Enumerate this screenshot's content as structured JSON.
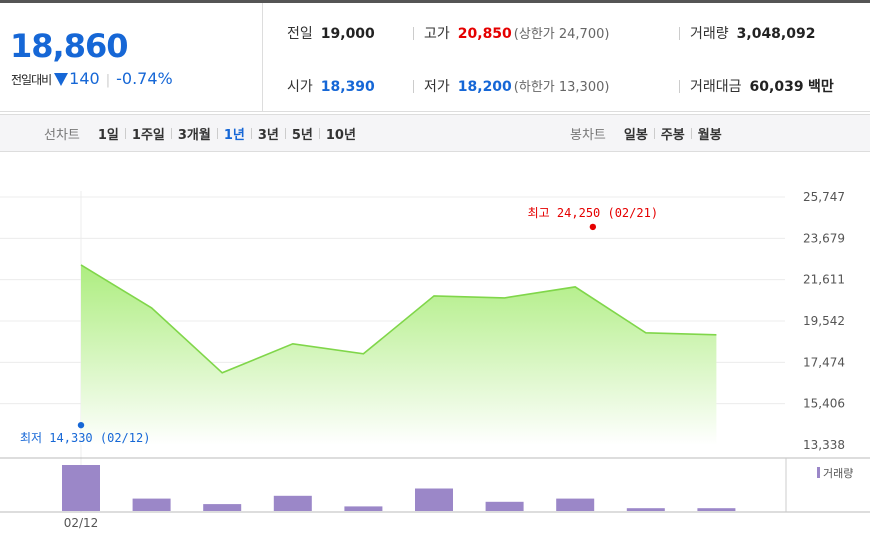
{
  "summary": {
    "current_price": "18,860",
    "change_label": "전일대비",
    "change_value": "140",
    "change_pct": "-0.74%",
    "prev_close": {
      "label": "전일",
      "value": "19,000"
    },
    "open": {
      "label": "시가",
      "value": "18,390"
    },
    "high": {
      "label": "고가",
      "value": "20,850",
      "limit": "(상한가 24,700)"
    },
    "low": {
      "label": "저가",
      "value": "18,200",
      "limit": "(하한가 13,300)"
    },
    "volume": {
      "label": "거래량",
      "value": "3,048,092"
    },
    "amount": {
      "label": "거래대금",
      "value": "60,039",
      "unit": "백만"
    }
  },
  "line_tabs": {
    "title": "선차트",
    "items": [
      "1일",
      "1주일",
      "3개월",
      "1년",
      "3년",
      "5년",
      "10년"
    ],
    "active": "1년"
  },
  "candle_tabs": {
    "title": "봉차트",
    "items": [
      "일봉",
      "주봉",
      "월봉"
    ]
  },
  "colors": {
    "up": "#e50000",
    "down": "#1667d6",
    "area_line": "#80d64a",
    "volume_bar": "#9b87c8"
  },
  "chart_data": [
    {
      "type": "area",
      "ylim": [
        13338,
        25747
      ],
      "yticks": [
        "25,747",
        "23,679",
        "21,611",
        "19,542",
        "17,474",
        "15,406",
        "13,338"
      ],
      "ytick_values": [
        25747,
        23679,
        21611,
        19542,
        17474,
        15406,
        13338
      ],
      "series": [
        {
          "values": [
            22350,
            20200,
            16950,
            18400,
            17900,
            20800,
            20700,
            21250,
            18950,
            18850
          ]
        }
      ],
      "annotations": {
        "high": {
          "label": "최고 24,250 (02/21)",
          "value": 24250,
          "index": 7.25
        },
        "low": {
          "label": "최저 14,330 (02/12)",
          "value": 14330,
          "index": 0
        }
      }
    },
    {
      "type": "bar",
      "categories": [
        "02/12",
        "",
        "",
        "",
        "",
        "",
        "",
        "",
        "",
        ""
      ],
      "series": [
        {
          "name": "거래량",
          "values": [
            100,
            27,
            15,
            33,
            10,
            49,
            20,
            27,
            6,
            6
          ]
        }
      ],
      "xtick_label": "02/12",
      "legend": "거래량"
    }
  ]
}
